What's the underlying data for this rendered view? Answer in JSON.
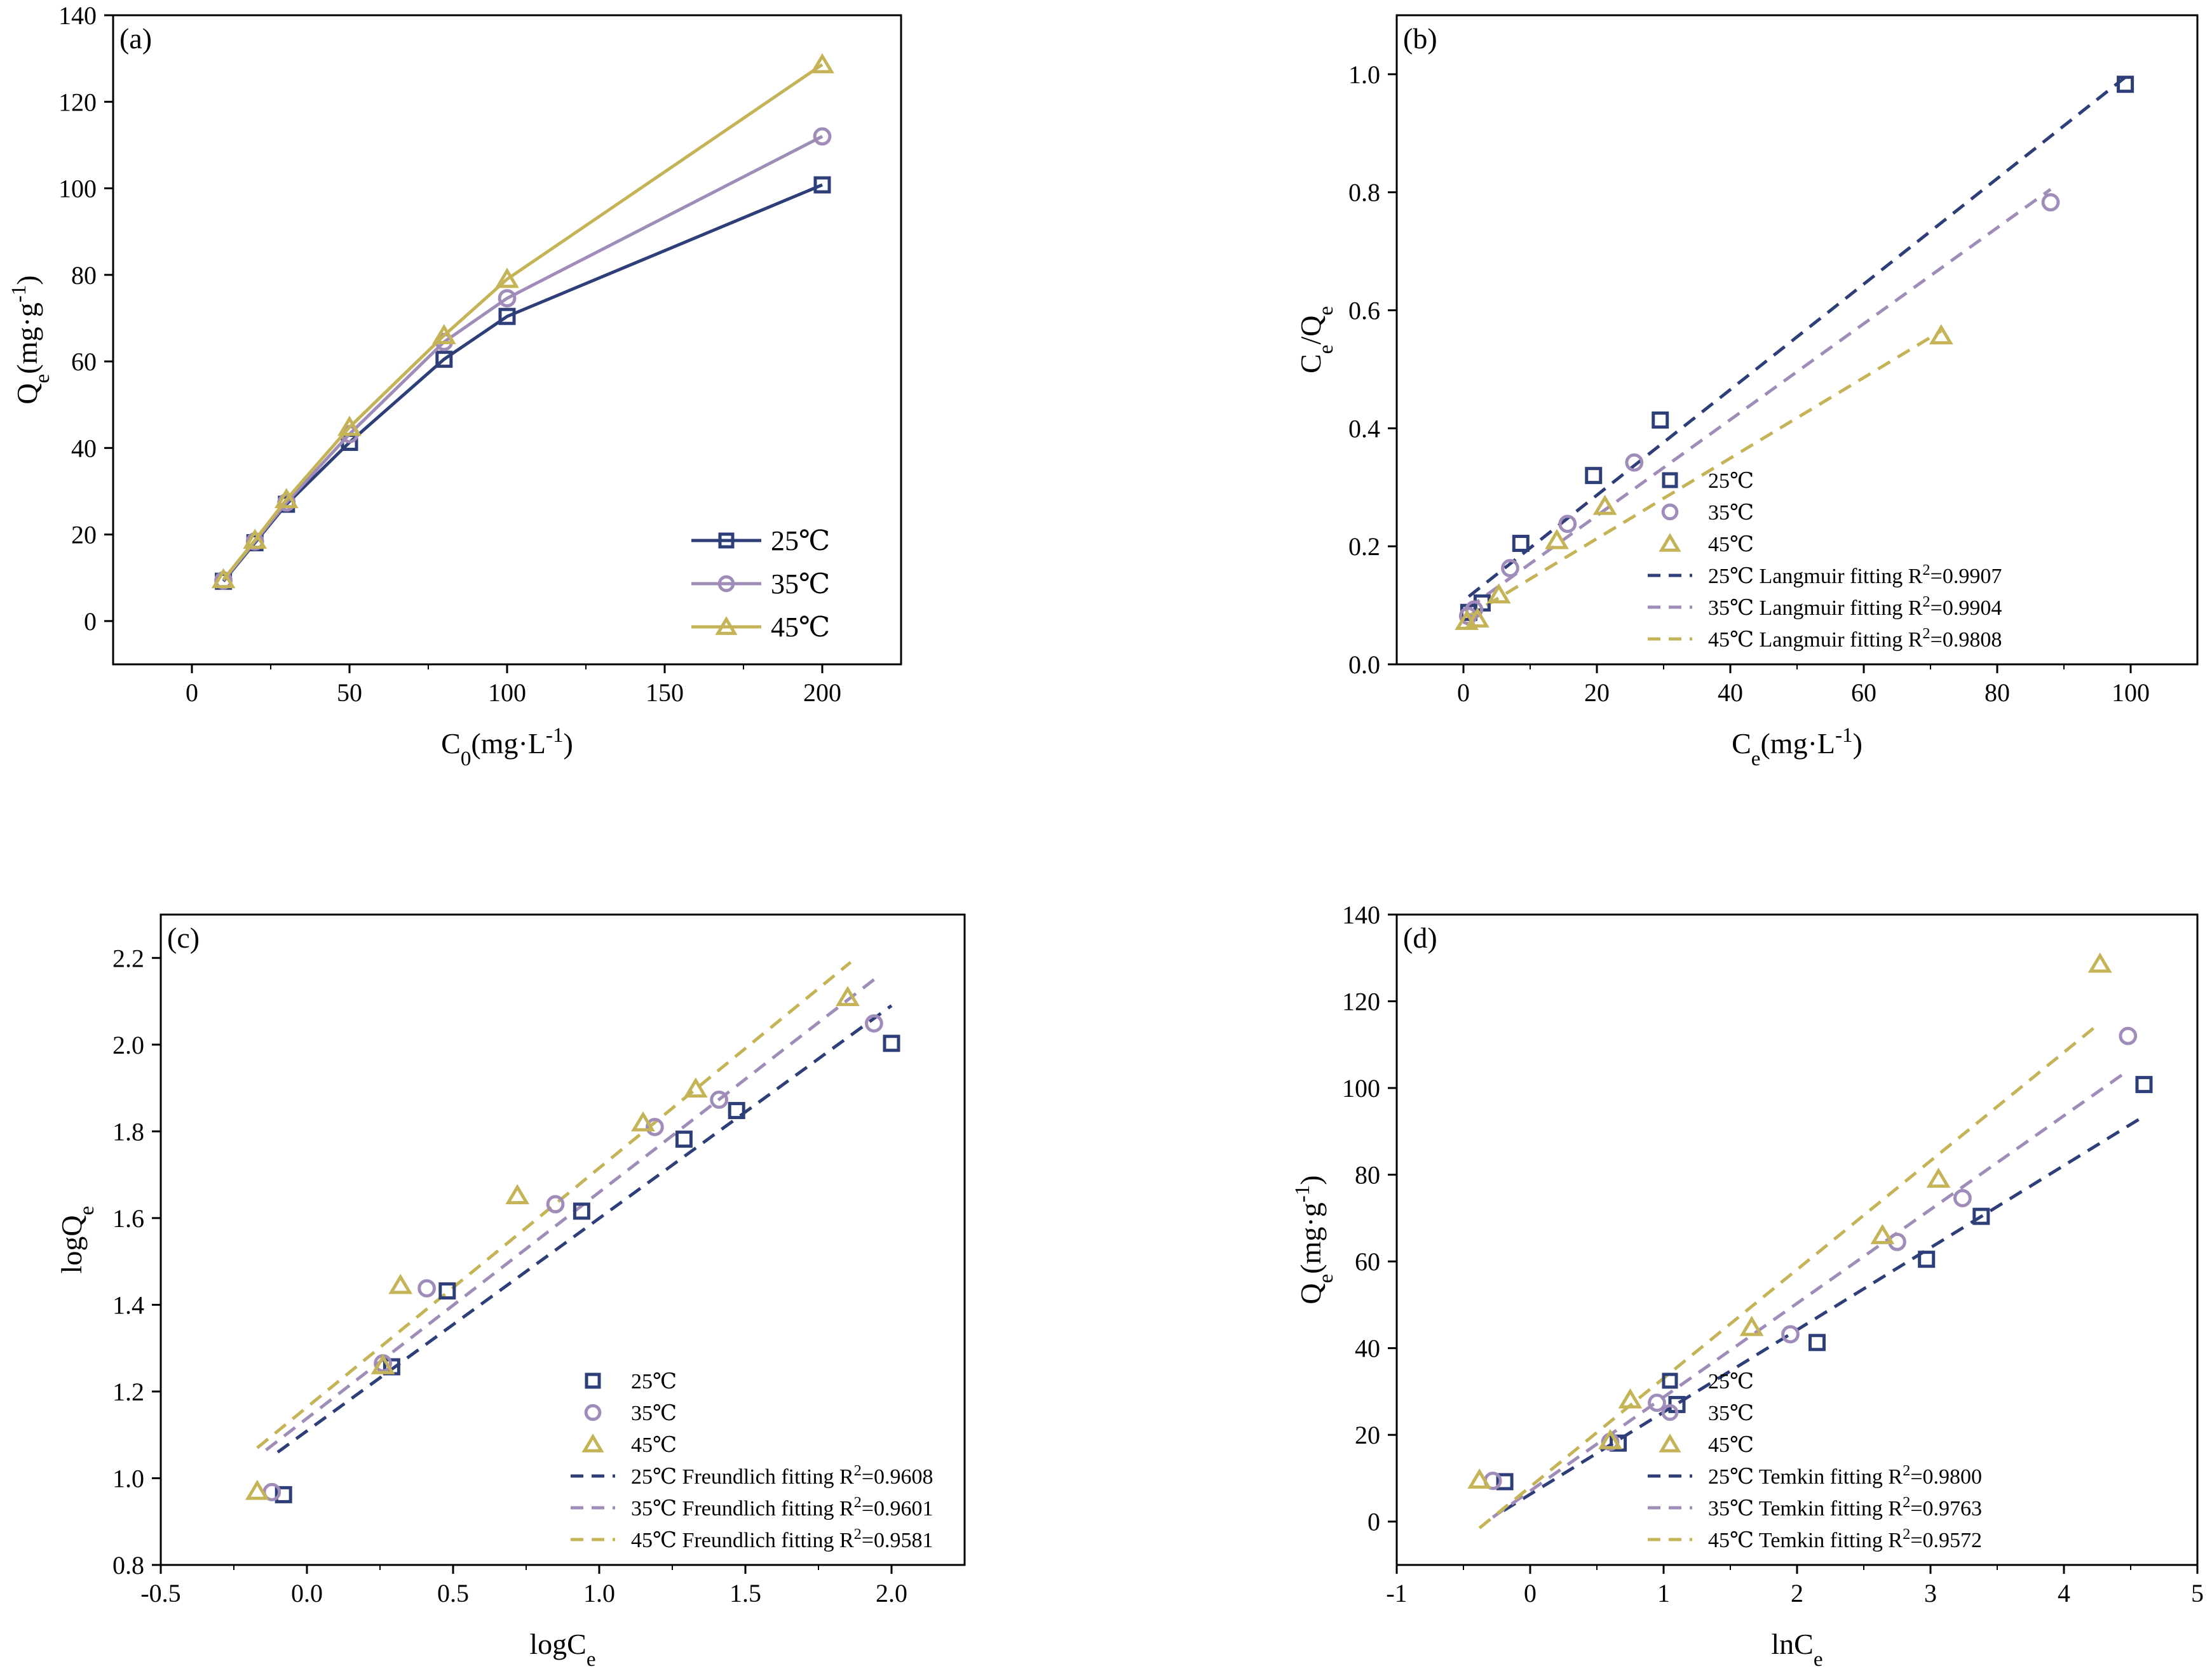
{
  "colors": {
    "t25": "#2e3e78",
    "t35": "#a08cb8",
    "t45": "#c4b457"
  },
  "chart_data": [
    {
      "panel": "(a)",
      "type": "line",
      "xlabel": "C0(mg·L-1)",
      "ylabel": "Qe(mg·g-1)",
      "xlim": [
        -25,
        225
      ],
      "ylim": [
        -10,
        140
      ],
      "xticks": [
        0,
        50,
        100,
        150,
        200
      ],
      "yticks": [
        0,
        20,
        40,
        60,
        80,
        100,
        120,
        140
      ],
      "legend_loc": "bottom-right",
      "series": [
        {
          "name": "25℃",
          "marker": "square",
          "color": "#2e3e78",
          "x": [
            10,
            20,
            30,
            50,
            80,
            100,
            200
          ],
          "y": [
            9.2,
            18.1,
            27.0,
            41.3,
            60.5,
            70.4,
            100.8
          ]
        },
        {
          "name": "35℃",
          "marker": "circle",
          "color": "#a08cb8",
          "x": [
            10,
            20,
            30,
            50,
            80,
            100,
            200
          ],
          "y": [
            9.4,
            18.4,
            27.4,
            43.2,
            64.5,
            74.6,
            112.0
          ]
        },
        {
          "name": "45℃",
          "marker": "triangle",
          "color": "#c4b457",
          "x": [
            10,
            20,
            30,
            50,
            80,
            100,
            200
          ],
          "y": [
            9.6,
            18.7,
            28.1,
            44.8,
            66.0,
            79.0,
            128.6
          ]
        }
      ]
    },
    {
      "panel": "(b)",
      "type": "scatter",
      "xlabel": "Ce(mg·L-1)",
      "ylabel": "Ce/Qe",
      "xlim": [
        -10,
        110
      ],
      "ylim": [
        0,
        1.1
      ],
      "xticks": [
        0,
        20,
        40,
        60,
        80,
        100
      ],
      "yticks": [
        0.0,
        0.2,
        0.4,
        0.6,
        0.8,
        1.0
      ],
      "legend_loc": "bottom-right",
      "series": [
        {
          "name": "25℃",
          "marker": "square",
          "color": "#2e3e78",
          "x": [
            0.8,
            2.8,
            8.6,
            19.5,
            29.5,
            99.2
          ],
          "y": [
            0.088,
            0.104,
            0.205,
            0.32,
            0.414,
            0.983
          ]
        },
        {
          "name": "35℃",
          "marker": "circle",
          "color": "#a08cb8",
          "x": [
            0.7,
            1.6,
            7.0,
            15.6,
            25.6,
            88.0
          ],
          "y": [
            0.082,
            0.093,
            0.163,
            0.238,
            0.342,
            0.783
          ]
        },
        {
          "name": "45℃",
          "marker": "triangle",
          "color": "#c4b457",
          "x": [
            0.5,
            2.1,
            5.3,
            14.0,
            21.2,
            71.6
          ],
          "y": [
            0.073,
            0.077,
            0.118,
            0.21,
            0.268,
            0.557
          ]
        }
      ],
      "fits": [
        {
          "name": "25℃ Langmuir fitting R2=0.9907",
          "label": "25℃ Langmuir fitting R",
          "r2": "=0.9907",
          "color": "#2e3e78",
          "x": [
            0.8,
            99.2
          ],
          "y": [
            0.115,
            0.995
          ]
        },
        {
          "name": "35℃ Langmuir fitting R2=0.9904",
          "label": "35℃ Langmuir fitting R",
          "r2": "=0.9904",
          "color": "#a08cb8",
          "x": [
            0.7,
            88.0
          ],
          "y": [
            0.095,
            0.805
          ]
        },
        {
          "name": "45℃ Langmuir fitting R2=0.9808",
          "label": "45℃ Langmuir fitting R",
          "r2": "=0.9808",
          "color": "#c4b457",
          "x": [
            0.5,
            71.6
          ],
          "y": [
            0.08,
            0.565
          ]
        }
      ]
    },
    {
      "panel": "(c)",
      "type": "scatter",
      "xlabel": "logCe",
      "ylabel": "logQe",
      "xlim": [
        -0.5,
        2.25
      ],
      "ylim": [
        0.8,
        2.3
      ],
      "xticks": [
        -0.5,
        0.0,
        0.5,
        1.0,
        1.5,
        2.0
      ],
      "yticks": [
        0.8,
        1.0,
        1.2,
        1.4,
        1.6,
        1.8,
        2.0,
        2.2
      ],
      "legend_loc": "bottom-right",
      "series": [
        {
          "name": "25℃",
          "marker": "square",
          "color": "#2e3e78",
          "x": [
            -0.08,
            0.29,
            0.48,
            0.94,
            1.29,
            1.47,
            2.0
          ],
          "y": [
            0.962,
            1.257,
            1.432,
            1.616,
            1.782,
            1.848,
            2.003
          ]
        },
        {
          "name": "35℃",
          "marker": "circle",
          "color": "#a08cb8",
          "x": [
            -0.12,
            0.26,
            0.41,
            0.85,
            1.19,
            1.41,
            1.94
          ],
          "y": [
            0.968,
            1.265,
            1.438,
            1.632,
            1.81,
            1.873,
            2.049
          ]
        },
        {
          "name": "45℃",
          "marker": "triangle",
          "color": "#c4b457",
          "x": [
            -0.17,
            0.26,
            0.32,
            0.72,
            1.15,
            1.33,
            1.85
          ],
          "y": [
            0.97,
            1.26,
            1.445,
            1.652,
            1.82,
            1.898,
            2.109
          ]
        }
      ],
      "fits": [
        {
          "name": "25℃ Freundlich fitting R2=0.9608",
          "label": "25℃ Freundlich fitting R",
          "r2": "=0.9608",
          "color": "#2e3e78",
          "x": [
            -0.1,
            2.0
          ],
          "y": [
            1.06,
            2.09
          ]
        },
        {
          "name": "35℃ Freundlich fitting R2=0.9601",
          "label": "35℃ Freundlich fitting R",
          "r2": "=0.9601",
          "color": "#a08cb8",
          "x": [
            -0.14,
            1.94
          ],
          "y": [
            1.065,
            2.15
          ]
        },
        {
          "name": "45℃ Freundlich fitting R2=0.9581",
          "label": "45℃ Freundlich fitting R",
          "r2": "=0.9581",
          "color": "#c4b457",
          "x": [
            -0.17,
            1.86
          ],
          "y": [
            1.07,
            2.19
          ]
        }
      ]
    },
    {
      "panel": "(d)",
      "type": "scatter",
      "xlabel": "lnCe",
      "ylabel": "Qe(mg·g-1)",
      "xlim": [
        -1,
        5
      ],
      "ylim": [
        -10,
        140
      ],
      "xticks": [
        -1,
        0,
        1,
        2,
        3,
        4,
        5
      ],
      "yticks": [
        0,
        20,
        40,
        60,
        80,
        100,
        120,
        140
      ],
      "legend_loc": "bottom-right",
      "series": [
        {
          "name": "25℃",
          "marker": "square",
          "color": "#2e3e78",
          "x": [
            -0.19,
            0.66,
            1.1,
            2.15,
            2.97,
            3.38,
            4.6
          ],
          "y": [
            9.2,
            18.1,
            27.0,
            41.3,
            60.5,
            70.4,
            100.8
          ]
        },
        {
          "name": "35℃",
          "marker": "circle",
          "color": "#a08cb8",
          "x": [
            -0.28,
            0.6,
            0.95,
            1.95,
            2.75,
            3.24,
            4.48
          ],
          "y": [
            9.4,
            18.4,
            27.4,
            43.2,
            64.5,
            74.6,
            112.0
          ]
        },
        {
          "name": "45℃",
          "marker": "triangle",
          "color": "#c4b457",
          "x": [
            -0.38,
            0.6,
            0.75,
            1.66,
            2.64,
            3.06,
            4.27
          ],
          "y": [
            9.6,
            18.7,
            28.1,
            44.8,
            66.0,
            79.0,
            128.6
          ]
        }
      ],
      "fits": [
        {
          "name": "25℃ Temkin fitting R2=0.9800",
          "label": "25℃ Temkin fitting R",
          "r2": "=0.9800",
          "color": "#2e3e78",
          "x": [
            -0.2,
            4.6
          ],
          "y": [
            2.5,
            93.5
          ]
        },
        {
          "name": "35℃ Temkin fitting R2=0.9763",
          "label": "35℃ Temkin fitting R",
          "r2": "=0.9763",
          "color": "#a08cb8",
          "x": [
            -0.28,
            4.48
          ],
          "y": [
            1.0,
            104.0
          ]
        },
        {
          "name": "45℃ Temkin fitting R2=0.9572",
          "label": "45℃ Temkin fitting R",
          "r2": "=0.9572",
          "color": "#c4b457",
          "x": [
            -0.38,
            4.27
          ],
          "y": [
            -1.5,
            115.0
          ]
        }
      ]
    }
  ]
}
